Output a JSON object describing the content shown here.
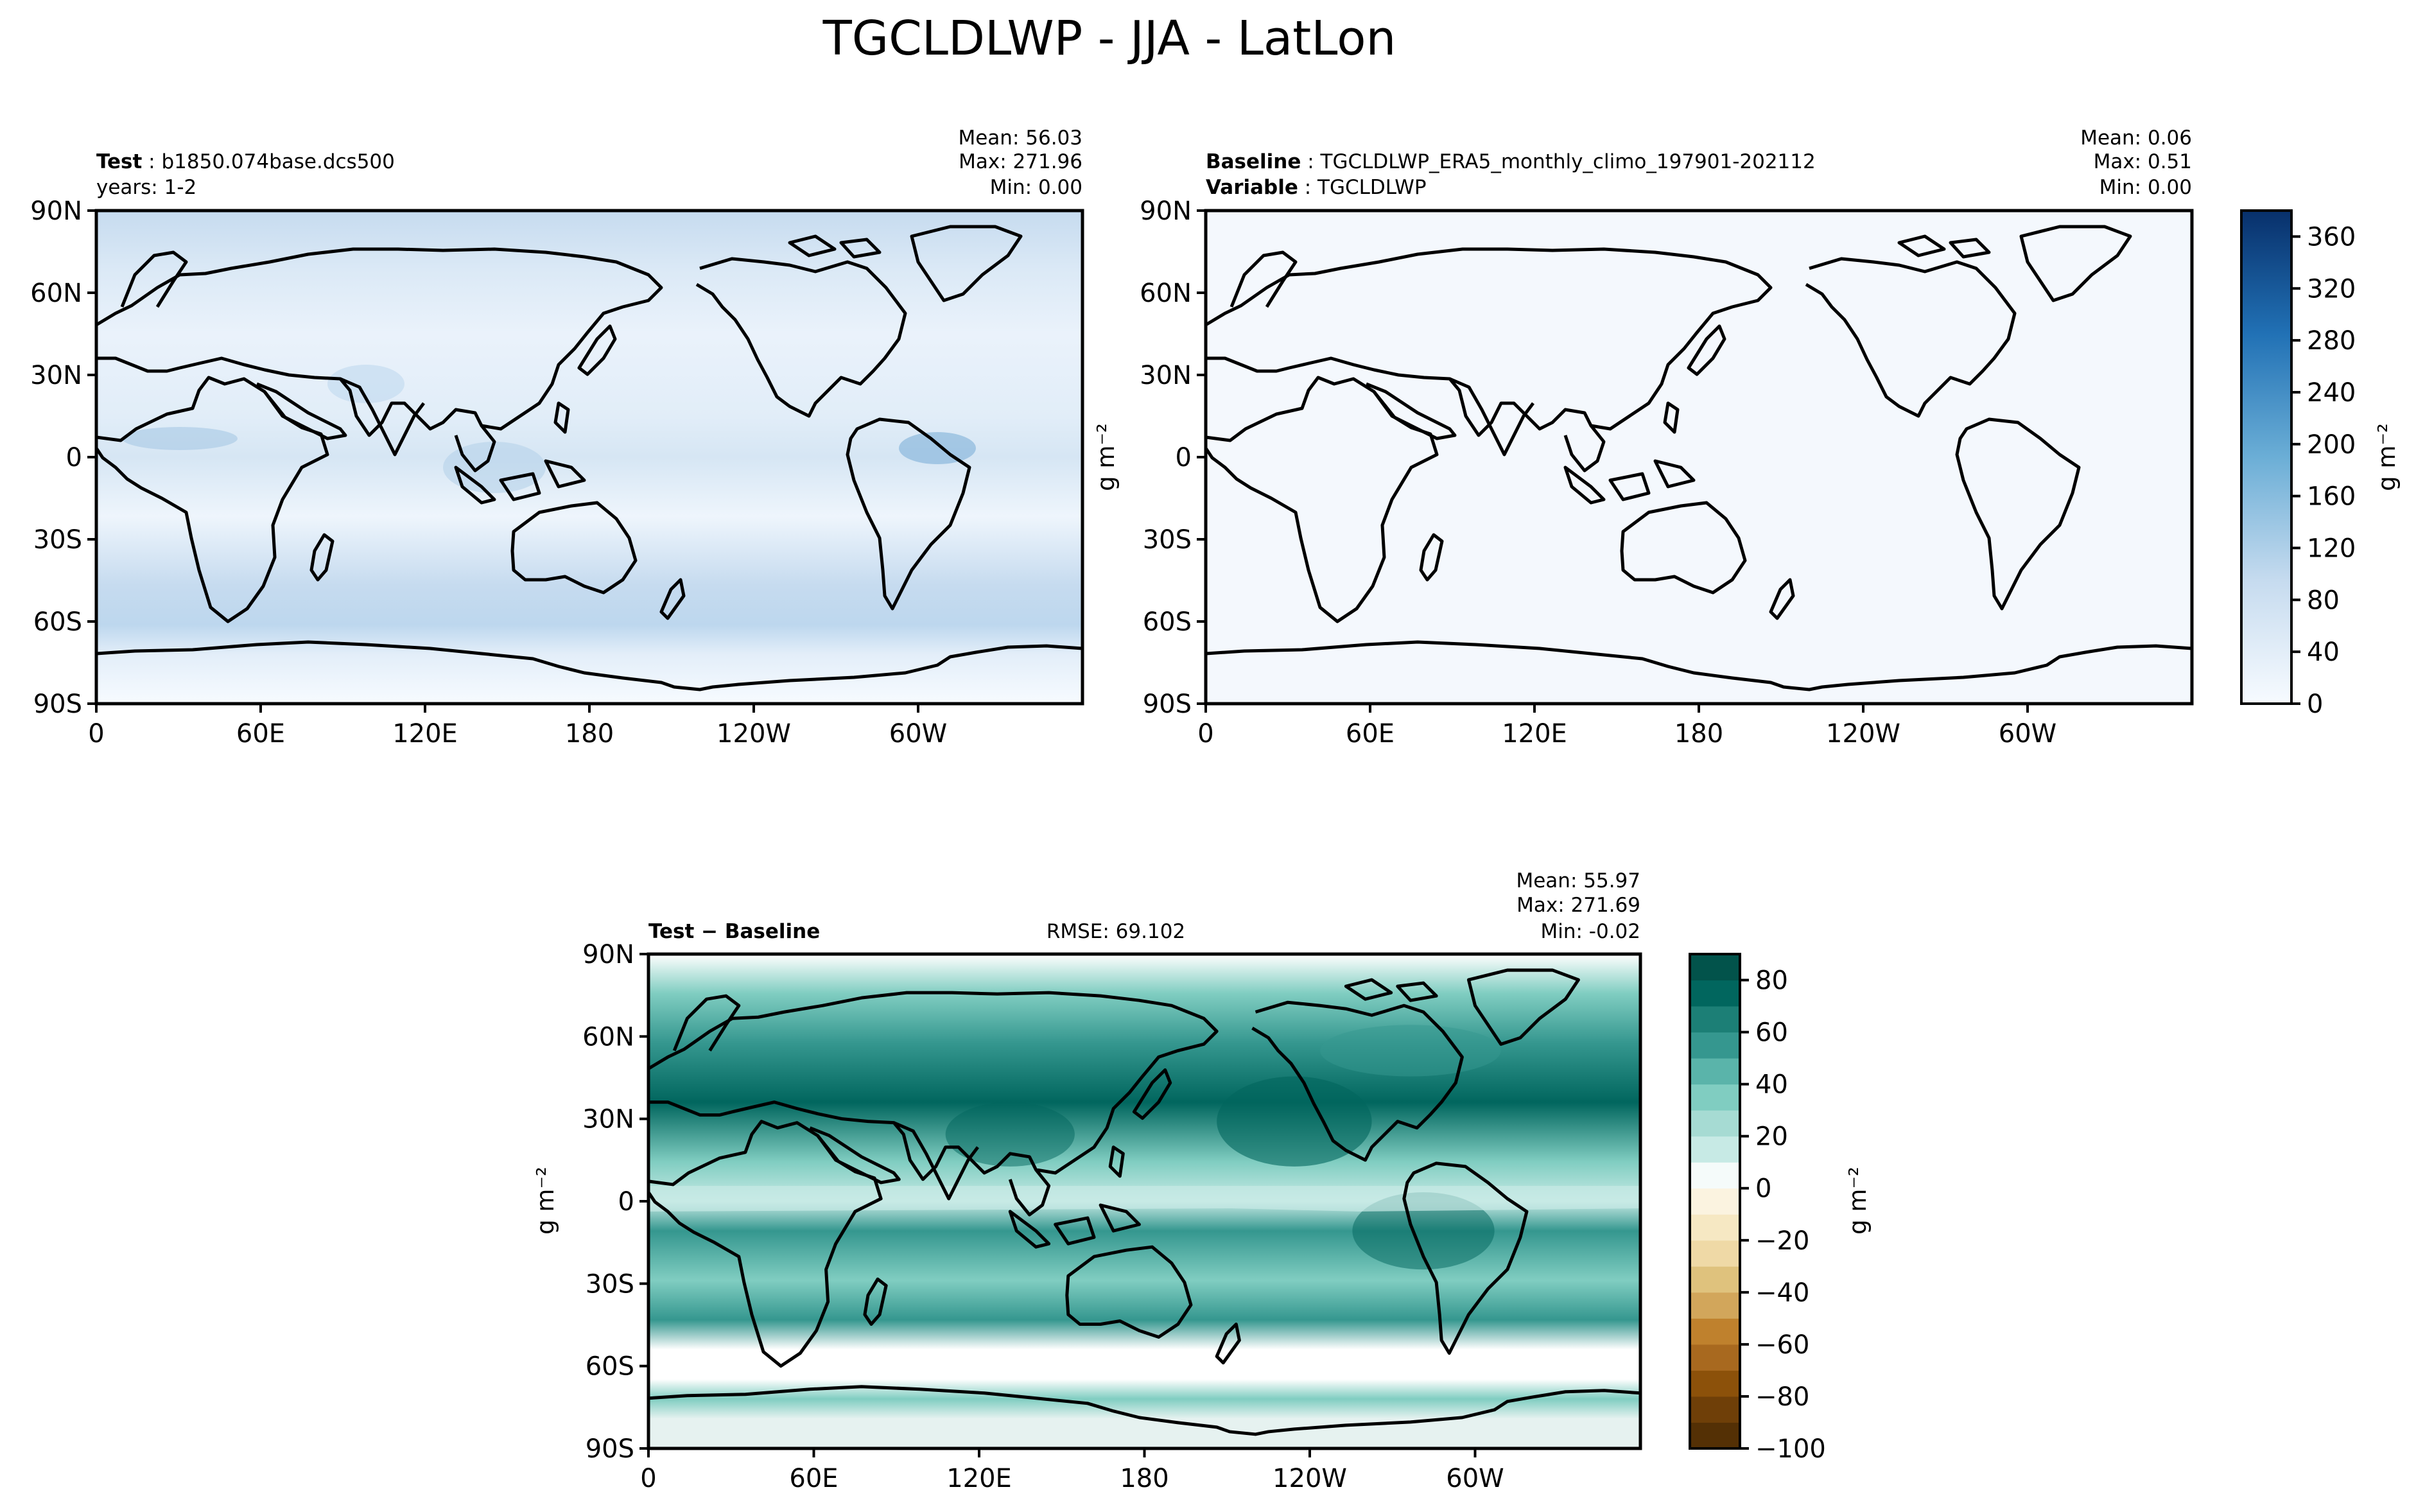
{
  "figure": {
    "title": "TGCLDLWP - JJA - LatLon"
  },
  "latitude_ticks": [
    "90N",
    "60N",
    "30N",
    "0",
    "30S",
    "60S",
    "90S"
  ],
  "longitude_ticks": [
    "0",
    "60E",
    "120E",
    "180",
    "120W",
    "60W"
  ],
  "panels": {
    "test": {
      "label_bold": "Test",
      "label_text": "b1850.074base.dcs500",
      "subtitle": "years: 1-2",
      "mean": "Mean: 56.03",
      "max": "Max: 271.96",
      "min": "Min:  0.00"
    },
    "baseline": {
      "label_bold": "Baseline",
      "label_text": "TGCLDLWP_ERA5_monthly_climo_197901-202112",
      "variable_bold": "Variable",
      "variable_text": "TGCLDLWP",
      "mean": "Mean:  0.06",
      "max": "Max:  0.51",
      "min": "Min:  0.00",
      "unit_label": "g m⁻²"
    },
    "difference": {
      "label_bold": "Test − Baseline",
      "rmse": "RMSE: 69.102",
      "mean": "Mean: 55.97",
      "max": "Max: 271.69",
      "min": "Min: -0.02",
      "unit_label": "g m⁻²"
    }
  },
  "colorbars": {
    "sequential": {
      "ticks": [
        "360",
        "320",
        "280",
        "240",
        "200",
        "160",
        "120",
        "80",
        "40",
        "0"
      ],
      "unit_label": "g m⁻²",
      "colormap": "Blues",
      "range": [
        0,
        380
      ]
    },
    "diverging": {
      "ticks": [
        "80",
        "60",
        "40",
        "20",
        "0",
        "−20",
        "−40",
        "−60",
        "−80",
        "−100"
      ],
      "unit_label": "g m⁻²",
      "colormap": "BrBG",
      "range": [
        -100,
        90
      ]
    }
  },
  "colors": {
    "blues_low": "#f7fbff",
    "blues_mid": "#9ecae1",
    "blues_high": "#08306b",
    "brbg_pos_low": "#c7eae5",
    "brbg_pos_mid": "#35978f",
    "brbg_pos_high": "#003c30",
    "brbg_neg_low": "#f6e8c3",
    "brbg_neg_mid": "#bf812d",
    "brbg_neg_high": "#543005",
    "coastline": "#000000"
  }
}
